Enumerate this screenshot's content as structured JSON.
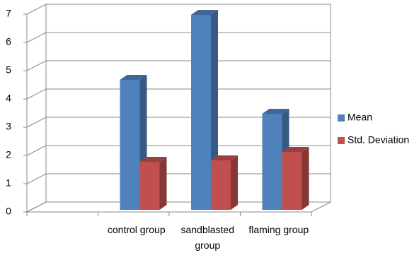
{
  "chart_data": {
    "type": "bar3d",
    "categories": [
      null,
      "control group",
      "sandblasted group",
      "flaming group"
    ],
    "series": [
      {
        "name": "Mean",
        "color": "#4f81bd",
        "values": [
          null,
          4.6,
          6.9,
          3.4
        ]
      },
      {
        "name": "Std. Deviation",
        "color": "#c0504d",
        "values": [
          null,
          1.7,
          1.75,
          2.05
        ]
      }
    ],
    "ylim": [
      0,
      7
    ],
    "yticks": [
      0,
      1,
      2,
      3,
      4,
      5,
      6,
      7
    ],
    "grid": true,
    "legend": "right"
  }
}
